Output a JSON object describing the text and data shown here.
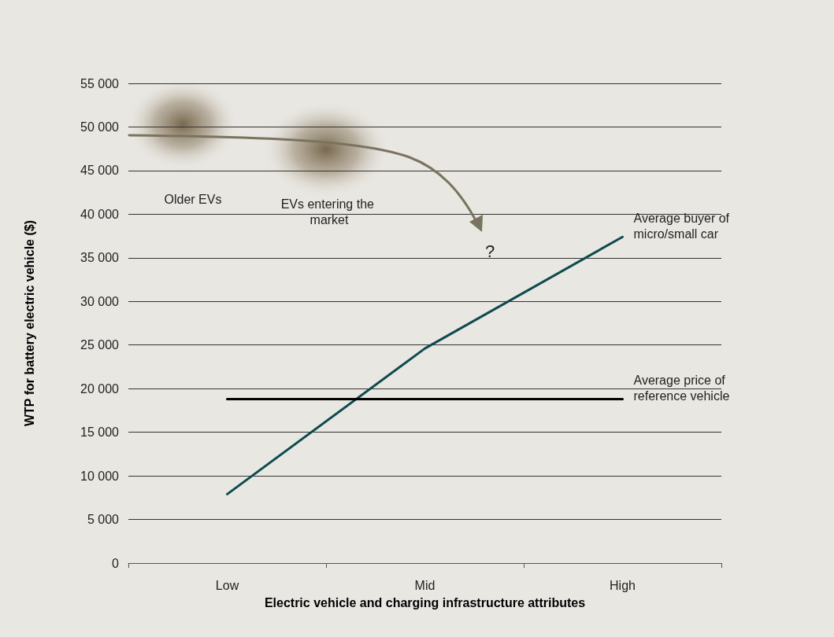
{
  "chart_data": {
    "type": "line",
    "xlabel": "Electric vehicle and charging infrastructure attributes",
    "ylabel": "WTP for battery electric vehicle ($)",
    "categories": [
      "Low",
      "Mid",
      "High"
    ],
    "series": [
      {
        "name": "Average buyer of micro/small car",
        "color": "#0e4a4f",
        "values": [
          7900,
          24600,
          37400
        ]
      },
      {
        "name": "Average price of reference vehicle",
        "color": "#000000",
        "values": [
          18800,
          18800,
          18800
        ]
      }
    ],
    "ylim": [
      0,
      55000
    ],
    "yticks": [
      {
        "value": 0,
        "label": "0"
      },
      {
        "value": 5000,
        "label": "5 000"
      },
      {
        "value": 10000,
        "label": "10 000"
      },
      {
        "value": 15000,
        "label": "15 000"
      },
      {
        "value": 20000,
        "label": "20 000"
      },
      {
        "value": 25000,
        "label": "25 000"
      },
      {
        "value": 30000,
        "label": "30 000"
      },
      {
        "value": 35000,
        "label": "35 000"
      },
      {
        "value": 40000,
        "label": "40 000"
      },
      {
        "value": 45000,
        "label": "45 000"
      },
      {
        "value": 50000,
        "label": "50 000"
      },
      {
        "value": 55000,
        "label": "55 000"
      }
    ],
    "grid": "y",
    "legend": false,
    "marker": "none",
    "line_style": "solid",
    "annotations": [
      "Older EVs",
      "EVs entering the market",
      "?"
    ]
  }
}
